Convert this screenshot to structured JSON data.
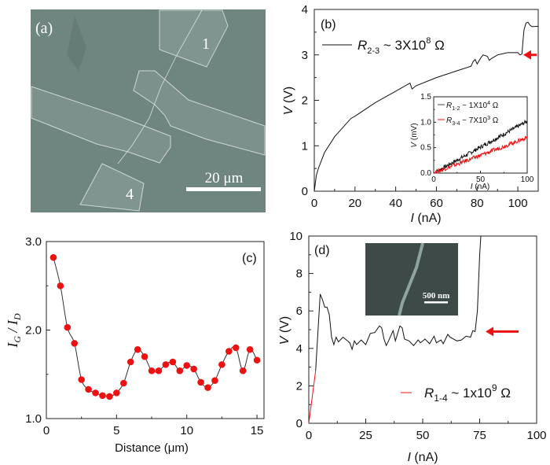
{
  "panel_a": {
    "label": "(a)",
    "pad_1": "1",
    "pad_4": "4",
    "scale_bar": "20 μm",
    "image_color": "#6f8580"
  },
  "panel_b": {
    "label": "(b)",
    "legend": {
      "symbol": "R",
      "sub": "2-3",
      "text": " ~ 3X10",
      "sup": "8",
      "unit": " Ω"
    },
    "ylabel": {
      "symbol": "V",
      "rest": " (V)"
    },
    "xlabel": {
      "symbol": "I",
      "rest": " (nA)"
    },
    "inset": {
      "legend_1": {
        "symbol": "R",
        "sub": "1-2",
        "text": " ~ 1X10",
        "sup": "4",
        "unit": " Ω"
      },
      "legend_2": {
        "symbol": "R",
        "sub": "3-4",
        "text": " ~ 7X10",
        "sup": "3",
        "unit": " Ω"
      },
      "ylabel": {
        "symbol": "V",
        "rest": " (mV)"
      },
      "xlabel": {
        "symbol": "I",
        "rest": " (nA)"
      }
    }
  },
  "panel_c": {
    "label": "(c)",
    "ylabel": {
      "a": "I",
      "a_sub": "G",
      "sep": " / ",
      "b": "I",
      "b_sub": "D"
    },
    "xlabel": "Distance (μm)"
  },
  "panel_d": {
    "label": "(d)",
    "legend": {
      "symbol": "R",
      "sub": "1-4",
      "text": " ~ 1x10",
      "sup": "9",
      "unit": " Ω"
    },
    "ylabel": {
      "symbol": "V",
      "rest": " (V)"
    },
    "xlabel": {
      "symbol": "I",
      "rest": " (nA)"
    },
    "inset_scale_bar": "500 nm"
  },
  "colors": {
    "black_series": "#111111",
    "red_series": "#ee1111",
    "arrow": "#ee1111"
  },
  "chart_data": [
    {
      "id": "b",
      "type": "line",
      "xlim": [
        0,
        110
      ],
      "ylim": [
        0,
        4
      ],
      "xticks": [
        0,
        20,
        40,
        60,
        80,
        100
      ],
      "xtick_labels": [
        "0",
        "20",
        "40",
        "60",
        "80",
        "100"
      ],
      "yticks": [
        0,
        1,
        2,
        3,
        4
      ],
      "ytick_labels": [
        "0",
        "1",
        "2",
        "3",
        "4"
      ],
      "series": [
        {
          "name": "R2-3 ~ 3X10^8 Ω",
          "color": "#111111",
          "x": [
            0,
            1,
            2,
            5,
            10,
            18,
            20,
            30,
            40,
            47,
            48,
            50,
            60,
            70,
            77,
            78,
            79,
            80,
            82,
            83,
            85,
            86,
            87,
            90,
            95,
            100,
            101,
            102,
            102.5,
            103,
            104,
            105,
            106,
            107,
            110
          ],
          "y": [
            0,
            0.35,
            0.5,
            0.85,
            1.2,
            1.6,
            1.65,
            1.95,
            2.2,
            2.38,
            2.25,
            2.32,
            2.5,
            2.65,
            2.75,
            2.85,
            2.9,
            2.8,
            2.95,
            3.0,
            2.97,
            2.88,
            2.92,
            3.0,
            3.05,
            3.05,
            3.0,
            3.02,
            3.3,
            3.55,
            3.7,
            3.72,
            3.65,
            3.62,
            3.63
          ]
        }
      ],
      "annotation": {
        "type": "arrow",
        "direction": "left",
        "at_y": 3.0
      }
    },
    {
      "id": "b_inset",
      "type": "line",
      "xlim": [
        0,
        100
      ],
      "ylim": [
        0,
        1.5
      ],
      "xticks": [
        0,
        50,
        100
      ],
      "xtick_labels": [
        "0",
        "50",
        "100"
      ],
      "yticks": [
        0,
        0.5,
        1.0,
        1.5
      ],
      "ytick_labels": [
        "0.0",
        "0.5",
        "1.0",
        "1.5"
      ],
      "series": [
        {
          "name": "R1-2 ~ 1X10^4 Ω",
          "color": "#111111",
          "x": [
            0,
            100
          ],
          "y": [
            0,
            1.02
          ]
        },
        {
          "name": "R3-4 ~ 7X10^3 Ω",
          "color": "#ee1111",
          "x": [
            0,
            100
          ],
          "y": [
            0,
            0.7
          ]
        }
      ]
    },
    {
      "id": "c",
      "type": "scatter",
      "xlim": [
        0,
        15.5
      ],
      "ylim": [
        1.0,
        3.0
      ],
      "xticks": [
        0,
        5,
        10,
        15
      ],
      "xtick_labels": [
        "0",
        "5",
        "10",
        "15"
      ],
      "yticks": [
        1.0,
        2.0,
        3.0
      ],
      "ytick_labels": [
        "1.0",
        "2.0",
        "3.0"
      ],
      "series": [
        {
          "color": "#ee1111",
          "x": [
            0.5,
            1,
            1.5,
            2,
            2.5,
            3,
            3.5,
            4,
            4.5,
            5,
            5.5,
            6,
            6.5,
            7,
            7.5,
            8,
            8.5,
            9,
            9.5,
            10,
            10.5,
            11,
            11.5,
            12,
            12.5,
            13,
            13.5,
            14,
            14.5,
            15
          ],
          "y": [
            2.82,
            2.5,
            2.03,
            1.85,
            1.44,
            1.33,
            1.29,
            1.26,
            1.25,
            1.29,
            1.4,
            1.64,
            1.78,
            1.7,
            1.54,
            1.54,
            1.61,
            1.64,
            1.54,
            1.6,
            1.56,
            1.41,
            1.35,
            1.43,
            1.61,
            1.76,
            1.8,
            1.54,
            1.78,
            1.66
          ]
        }
      ],
      "fit_line_color": "#333333"
    },
    {
      "id": "d",
      "type": "line",
      "xlim": [
        0,
        100
      ],
      "ylim": [
        0,
        10
      ],
      "xticks": [
        0,
        25,
        50,
        75,
        100
      ],
      "xtick_labels": [
        "0",
        "25",
        "50",
        "75",
        "100"
      ],
      "yticks": [
        0,
        2,
        4,
        6,
        8,
        10
      ],
      "ytick_labels": [
        "0",
        "2",
        "4",
        "6",
        "8",
        "10"
      ],
      "series": [
        {
          "name": "R1-4 ~ 1x10^9 Ω",
          "color": "#ee1111",
          "x": [
            0,
            3
          ],
          "y": [
            0,
            2.8
          ]
        },
        {
          "color": "#111111",
          "x": [
            3,
            5,
            6,
            7,
            8,
            9,
            10,
            11,
            12,
            13,
            15,
            17,
            18,
            19,
            20,
            21,
            23,
            25,
            27,
            29,
            31,
            32,
            33,
            34,
            35,
            37,
            38,
            40,
            41,
            42,
            44,
            46,
            48,
            49,
            51,
            53,
            55,
            56,
            58,
            59,
            61,
            62,
            65,
            67,
            69,
            71,
            72,
            73,
            74,
            75,
            75.5
          ],
          "y": [
            2.8,
            6.9,
            6.6,
            6.2,
            6.2,
            5.8,
            4.6,
            4.2,
            4.6,
            4.35,
            4.6,
            4.4,
            4.3,
            3.95,
            4.4,
            4.2,
            4.45,
            4.2,
            4.8,
            4.85,
            5.2,
            5.1,
            4.5,
            4.15,
            4.4,
            4.95,
            4.4,
            5.2,
            5.1,
            4.5,
            4.4,
            4.15,
            4.45,
            4.3,
            4.5,
            4.25,
            4.65,
            4.3,
            4.45,
            4.25,
            4.75,
            4.6,
            4.4,
            4.45,
            4.65,
            4.6,
            4.95,
            4.9,
            6.0,
            9.0,
            10
          ]
        }
      ],
      "annotation": {
        "type": "arrow",
        "direction": "left",
        "at_y": 4.9
      }
    }
  ]
}
